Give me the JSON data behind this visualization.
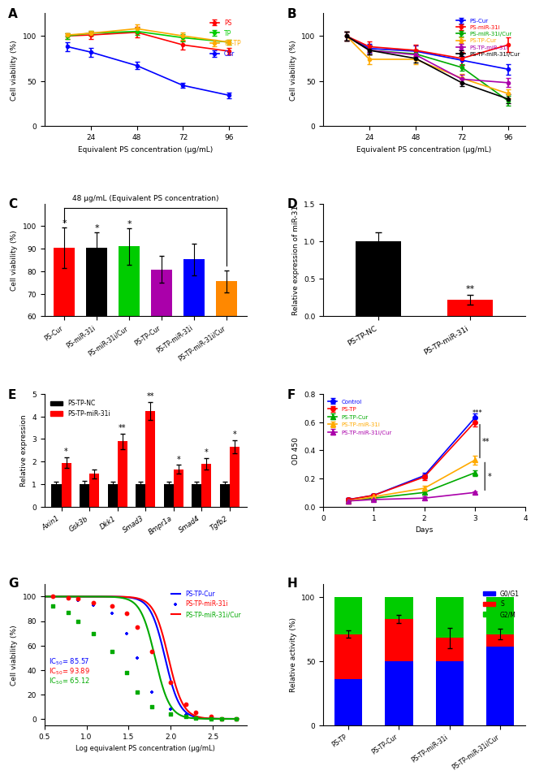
{
  "A": {
    "x": [
      12,
      24,
      48,
      72,
      96
    ],
    "PS": [
      100,
      101,
      104,
      90,
      83
    ],
    "PS_err": [
      3,
      4,
      6,
      5,
      4
    ],
    "TP": [
      100,
      103,
      105,
      98,
      93
    ],
    "TP_err": [
      3,
      3,
      4,
      4,
      3
    ],
    "PSTP": [
      101,
      103,
      108,
      100,
      93
    ],
    "PSTP_err": [
      2,
      3,
      5,
      4,
      3
    ],
    "Cur": [
      88,
      82,
      67,
      45,
      34
    ],
    "Cur_err": [
      5,
      5,
      4,
      3,
      3
    ],
    "colors": {
      "PS": "#FF0000",
      "TP": "#00CC00",
      "PSTP": "#FFAA00",
      "Cur": "#0000FF"
    }
  },
  "B": {
    "x": [
      12,
      24,
      48,
      72,
      96
    ],
    "PSCur": [
      100,
      86,
      83,
      73,
      63
    ],
    "PSCur_err": [
      5,
      5,
      6,
      5,
      6
    ],
    "PSmiR": [
      100,
      88,
      84,
      75,
      90
    ],
    "PSmiR_err": [
      5,
      6,
      6,
      7,
      8
    ],
    "PSmiRCur": [
      100,
      84,
      80,
      65,
      28
    ],
    "PSmiRCur_err": [
      5,
      5,
      5,
      4,
      5
    ],
    "PSTPCur": [
      100,
      74,
      74,
      53,
      36
    ],
    "PSTPCur_err": [
      5,
      5,
      5,
      5,
      5
    ],
    "PSTPmiR": [
      100,
      84,
      79,
      52,
      48
    ],
    "PSTPmiR_err": [
      5,
      5,
      5,
      5,
      5
    ],
    "PSTPmiRCur": [
      100,
      84,
      75,
      48,
      30
    ],
    "PSTPmiRCur_err": [
      5,
      5,
      5,
      4,
      5
    ],
    "colors": {
      "PSCur": "#0000FF",
      "PSmiR": "#FF0000",
      "PSmiRCur": "#00AA00",
      "PSTPCur": "#FFAA00",
      "PSTPmiR": "#AA00AA",
      "PSTPmiRCur": "#000000"
    }
  },
  "C": {
    "labels": [
      "PS-Cur",
      "PS-miR-31i",
      "PS-miR-31i/Cur",
      "PS-TP-Cur",
      "PS-TP-miR-31i",
      "PS-TP-miR-31i/Cur"
    ],
    "values": [
      90.5,
      90.3,
      91.0,
      80.8,
      85.3,
      75.5
    ],
    "errors": [
      9,
      7,
      8,
      6,
      7,
      5
    ],
    "colors": [
      "#FF0000",
      "#000000",
      "#00CC00",
      "#AA00AA",
      "#0000FF",
      "#FF8800"
    ]
  },
  "D": {
    "labels": [
      "PS-TP-NC",
      "PS-TP-miR-31i"
    ],
    "values": [
      1.0,
      0.22
    ],
    "errors": [
      0.12,
      0.06
    ],
    "colors": [
      "#000000",
      "#FF0000"
    ]
  },
  "E": {
    "genes": [
      "Axin1",
      "Gsk3b",
      "Dkk1",
      "Smad3",
      "Bmpr1a",
      "Smad4",
      "Tgfb2"
    ],
    "NC": [
      1.0,
      1.0,
      1.0,
      1.0,
      1.0,
      1.0,
      1.0
    ],
    "NC_err": [
      0.1,
      0.15,
      0.1,
      0.12,
      0.1,
      0.12,
      0.1
    ],
    "miR": [
      1.95,
      1.45,
      2.9,
      4.25,
      1.65,
      1.9,
      2.65
    ],
    "miR_err": [
      0.25,
      0.2,
      0.35,
      0.4,
      0.2,
      0.25,
      0.3
    ]
  },
  "F": {
    "days": [
      0.5,
      1,
      2,
      3
    ],
    "Control": [
      0.05,
      0.08,
      0.22,
      0.63
    ],
    "Control_err": [
      0.01,
      0.01,
      0.02,
      0.03
    ],
    "PSTP": [
      0.05,
      0.08,
      0.21,
      0.6
    ],
    "PSTP_err": [
      0.01,
      0.01,
      0.02,
      0.03
    ],
    "PSTPCur": [
      0.04,
      0.06,
      0.1,
      0.24
    ],
    "PSTPCur_err": [
      0.01,
      0.01,
      0.01,
      0.02
    ],
    "PSTPmiR": [
      0.04,
      0.07,
      0.13,
      0.33
    ],
    "PSTPmiR_err": [
      0.01,
      0.01,
      0.02,
      0.03
    ],
    "PSTPmiRCur": [
      0.04,
      0.05,
      0.06,
      0.1
    ],
    "PSTPmiRCur_err": [
      0.01,
      0.01,
      0.01,
      0.01
    ],
    "colors": {
      "Control": "#0000FF",
      "PSTP": "#FF0000",
      "PSTPCur": "#00AA00",
      "PSTPmiR": "#FFAA00",
      "PSTPmiRCur": "#AA00AA"
    }
  },
  "G": {
    "x_scatter_Cur": [
      0.6,
      0.78,
      0.9,
      1.08,
      1.3,
      1.48,
      1.6,
      1.78,
      2.0,
      2.18,
      2.3,
      2.48,
      2.6,
      2.78
    ],
    "y_scatter_Cur": [
      100,
      98,
      97,
      93,
      86,
      70,
      50,
      22,
      8,
      3,
      1,
      1,
      0,
      0
    ],
    "x_scatter_miR": [
      0.6,
      0.78,
      0.9,
      1.08,
      1.3,
      1.48,
      1.6,
      1.78,
      2.0,
      2.18,
      2.3,
      2.48,
      2.6,
      2.78
    ],
    "y_scatter_miR": [
      100,
      99,
      98,
      95,
      92,
      86,
      75,
      55,
      30,
      12,
      5,
      2,
      0,
      0
    ],
    "x_scatter_miRCur": [
      0.6,
      0.78,
      0.9,
      1.08,
      1.3,
      1.48,
      1.6,
      1.78,
      2.0,
      2.18,
      2.3,
      2.48,
      2.6,
      2.78
    ],
    "y_scatter_miRCur": [
      92,
      87,
      80,
      70,
      55,
      38,
      22,
      10,
      4,
      2,
      1,
      0,
      0,
      0
    ],
    "IC50_Cur": 85.57,
    "IC50_miR": 93.89,
    "IC50_miRCur": 65.12,
    "colors": {
      "Cur": "#0000FF",
      "miR": "#FF0000",
      "miRCur": "#00AA00"
    }
  },
  "H": {
    "labels": [
      "PS-TP",
      "PS-TP-Cur",
      "PS-TP-miR-31i",
      "PS-TP-miR-31i/Cur"
    ],
    "G0G1": [
      36,
      50,
      50,
      61
    ],
    "S": [
      35,
      33,
      18,
      10
    ],
    "G2M": [
      29,
      17,
      32,
      29
    ],
    "G0G1_err": [
      3,
      3,
      8,
      4
    ],
    "S_err": [
      3,
      3,
      8,
      4
    ],
    "G2M_err": [
      2,
      2,
      4,
      3
    ],
    "colors": {
      "G0G1": "#0000FF",
      "S": "#FF0000",
      "G2M": "#00CC00"
    }
  }
}
